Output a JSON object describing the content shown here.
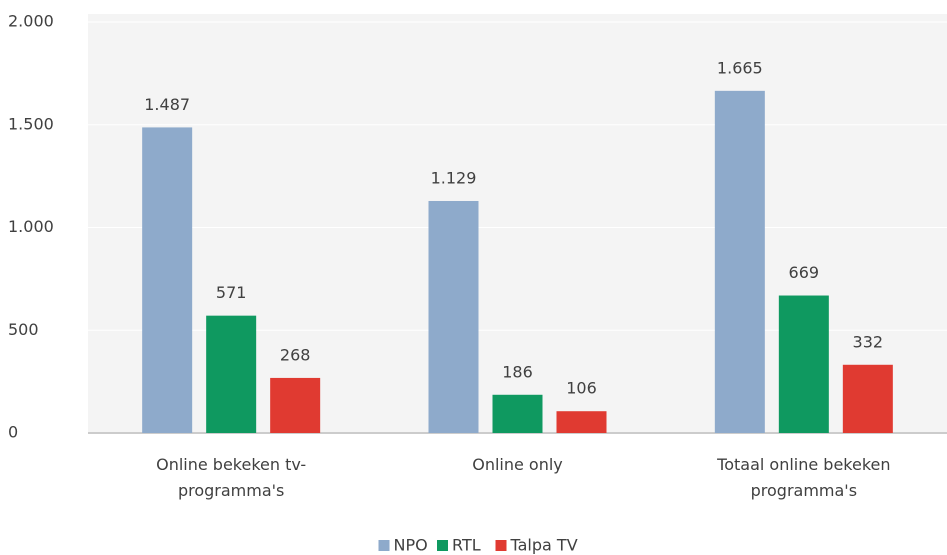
{
  "chart_data": {
    "type": "bar",
    "categories": [
      "Online bekeken tv-programma's",
      "Online only",
      "Totaal online bekeken programma's"
    ],
    "series": [
      {
        "name": "NPO",
        "color": "#8eaacb",
        "values": [
          1487,
          1129,
          1665
        ],
        "value_labels": [
          "1.487",
          "1.129",
          "1.665"
        ]
      },
      {
        "name": "RTL",
        "color": "#0f9960",
        "values": [
          571,
          186,
          669
        ]
      },
      {
        "name": "Talpa TV",
        "color": "#e03a31",
        "values": [
          268,
          106,
          332
        ]
      }
    ],
    "ylim": [
      0,
      2000
    ],
    "yticks": [
      0,
      500,
      {
        "value": 1000,
        "label": "1.000"
      },
      {
        "value": 1500,
        "label": "1.500"
      },
      {
        "value": 2000,
        "label": "2.000"
      }
    ],
    "grid": true,
    "legend": "bottom"
  }
}
